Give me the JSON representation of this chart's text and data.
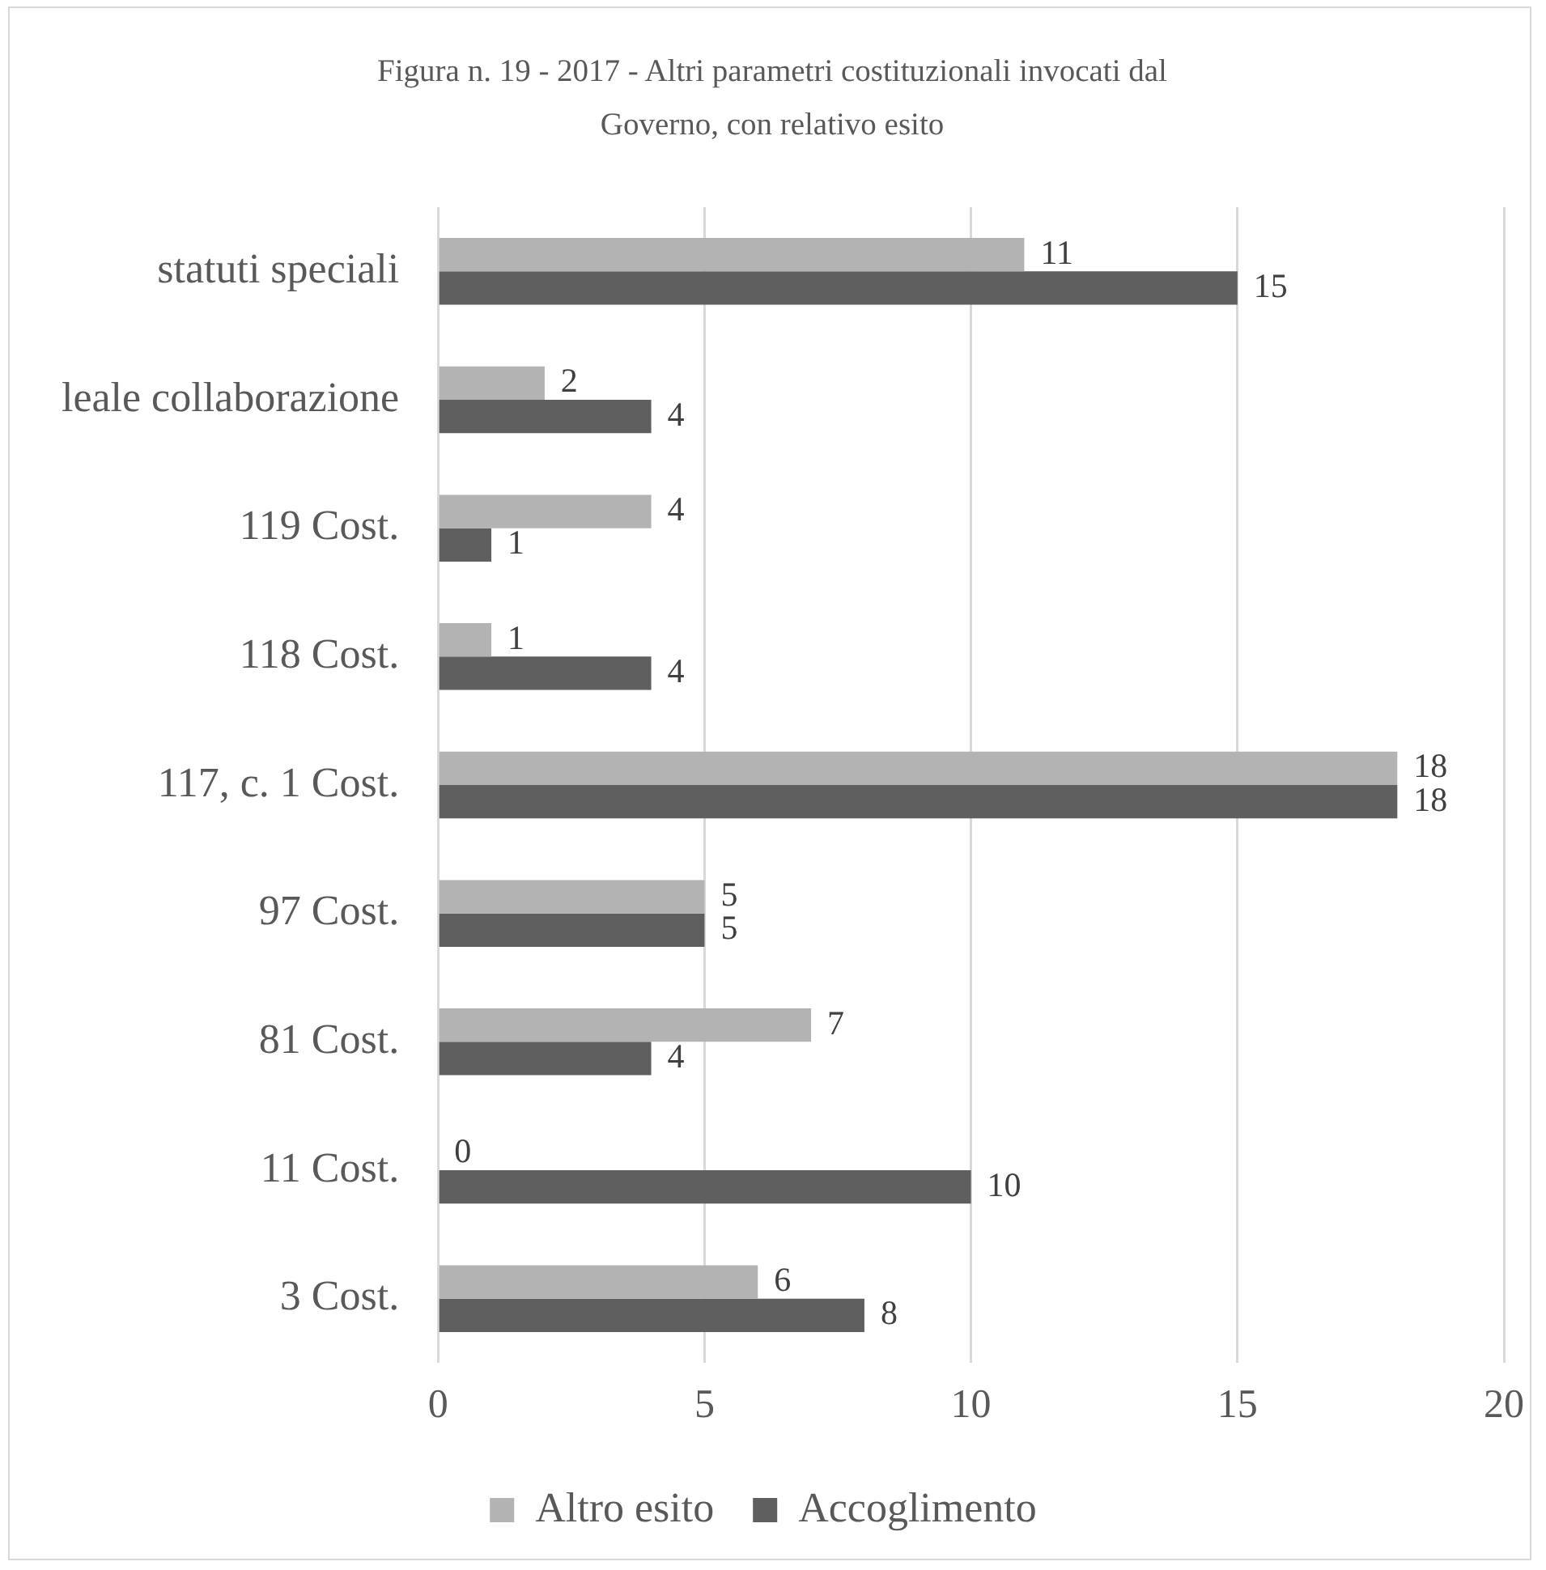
{
  "chart_data": {
    "type": "bar",
    "orientation": "horizontal",
    "title": "Figura n. 19 - 2017 - Altri parametri costituzionali invocati dal Governo, con relativo esito",
    "categories": [
      "statuti speciali",
      "leale collaborazione",
      "119 Cost.",
      "118 Cost.",
      "117, c. 1 Cost.",
      "97 Cost.",
      "81 Cost.",
      "11 Cost.",
      "3 Cost."
    ],
    "series": [
      {
        "name": "Altro esito",
        "color": "#b3b3b3",
        "values": [
          11,
          2,
          4,
          1,
          18,
          5,
          7,
          0,
          6
        ]
      },
      {
        "name": "Accoglimento",
        "color": "#5f5f5f",
        "values": [
          15,
          4,
          1,
          4,
          18,
          5,
          4,
          10,
          8
        ]
      }
    ],
    "xlim": [
      0,
      20
    ],
    "xticks": [
      0,
      5,
      10,
      15,
      20
    ],
    "grid": "x",
    "legend": "bottom",
    "data_labels": true
  }
}
